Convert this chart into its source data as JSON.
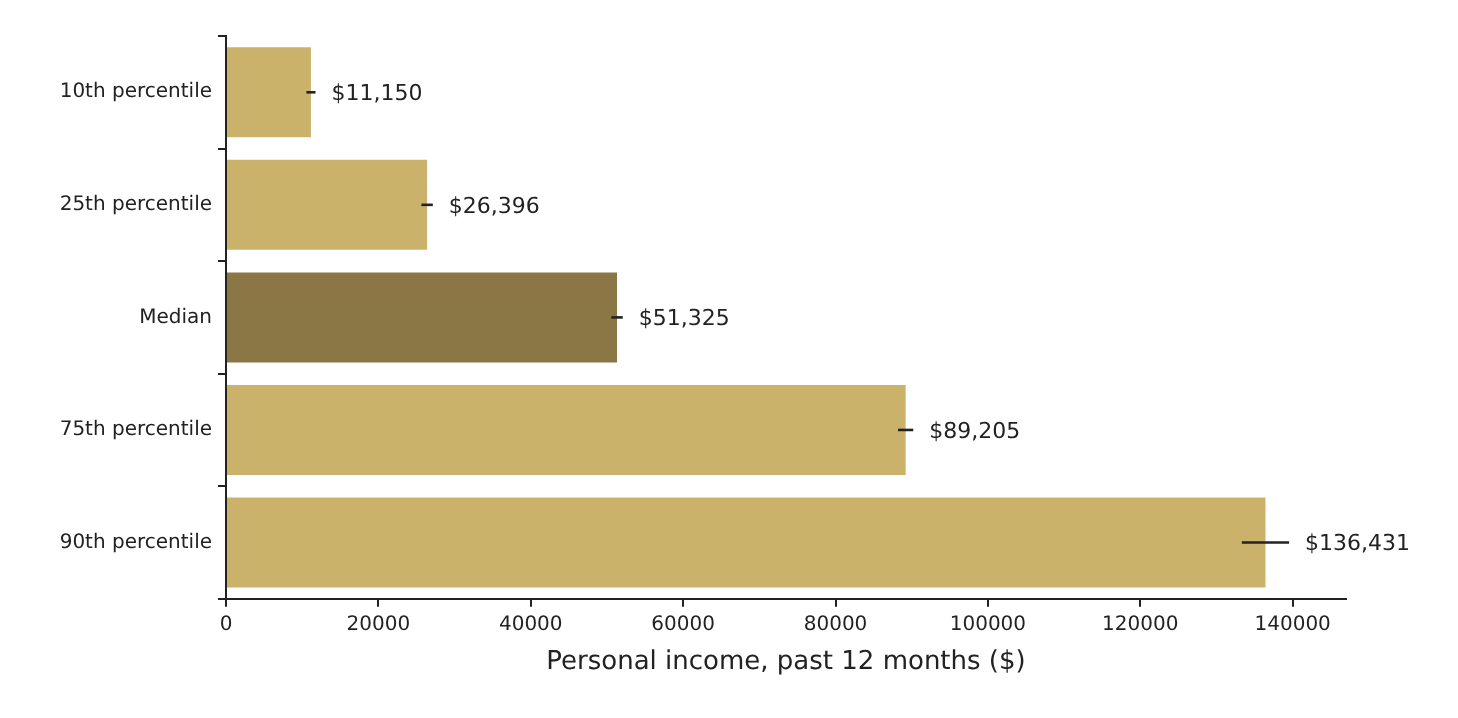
{
  "chart_data": {
    "type": "bar",
    "orientation": "horizontal",
    "xlabel": "Personal income, past 12 months ($)",
    "categories": [
      "10th percentile",
      "25th percentile",
      "Median",
      "75th percentile",
      "90th percentile"
    ],
    "values": [
      11150,
      26396,
      51325,
      89205,
      136431
    ],
    "colors": [
      "#cbb26a",
      "#cbb26a",
      "#8b7646",
      "#cbb26a",
      "#cbb26a"
    ],
    "errors": [
      600,
      750,
      750,
      1000,
      3100
    ],
    "value_labels": [
      "$11,150",
      "$26,396",
      "$51,325",
      "$89,205",
      "$136,431"
    ],
    "xlim": [
      0,
      147000
    ],
    "xticks": [
      0,
      20000,
      40000,
      60000,
      80000,
      100000,
      120000,
      140000
    ],
    "grid": false,
    "legend": false
  }
}
